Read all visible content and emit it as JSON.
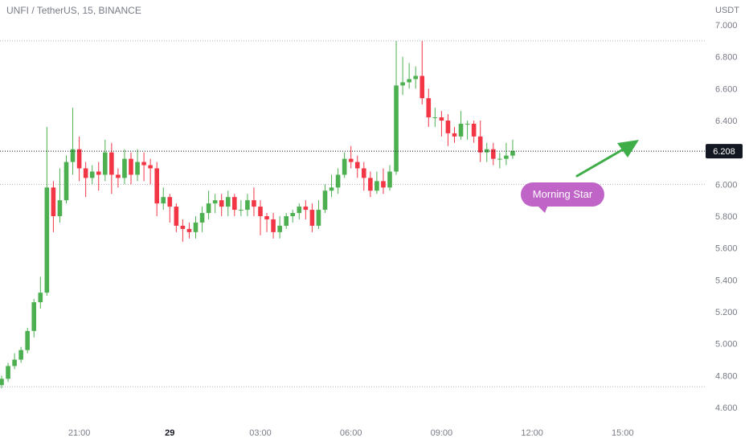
{
  "header": {
    "symbol_title": "UNFI / TetherUS, 15, BINANCE",
    "currency": "USDT"
  },
  "colors": {
    "up": "#4caf50",
    "down": "#f23645",
    "grid": "#b2b5be",
    "price_line": "#131722",
    "label_bg": "#131722",
    "callout": "#c064c8",
    "arrow": "#3fae49"
  },
  "chart_data": {
    "type": "candlestick",
    "title": "UNFI / TetherUS, 15, BINANCE",
    "y_unit": "USDT",
    "ylim": [
      4.5,
      7.1
    ],
    "y_ticks": [
      "7.000",
      "6.800",
      "6.600",
      "6.400",
      "6.200",
      "6.000",
      "5.800",
      "5.600",
      "5.400",
      "5.200",
      "5.000",
      "4.800",
      "4.600"
    ],
    "x_ticks": [
      {
        "label": "21:00",
        "index": 12,
        "bold": false
      },
      {
        "label": "29",
        "index": 26,
        "bold": true
      },
      {
        "label": "03:00",
        "index": 40,
        "bold": false
      },
      {
        "label": "06:00",
        "index": 54,
        "bold": false
      },
      {
        "label": "09:00",
        "index": 68,
        "bold": false
      },
      {
        "label": "12:00",
        "index": 82,
        "bold": false
      },
      {
        "label": "15:00",
        "index": 96,
        "bold": false
      }
    ],
    "horizontal_levels": [
      6.9,
      6.0,
      4.73
    ],
    "current_price": 6.208,
    "current_price_label": "6.208",
    "candles": [
      [
        4.74,
        4.78,
        4.72,
        4.8
      ],
      [
        4.78,
        4.86,
        4.76,
        4.88
      ],
      [
        4.86,
        4.9,
        4.84,
        4.94
      ],
      [
        4.9,
        4.96,
        4.88,
        4.98
      ],
      [
        4.96,
        5.08,
        4.94,
        5.1
      ],
      [
        5.08,
        5.26,
        5.04,
        5.28
      ],
      [
        5.26,
        5.32,
        5.22,
        5.42
      ],
      [
        5.32,
        5.98,
        5.3,
        6.36
      ],
      [
        5.98,
        5.8,
        5.7,
        6.02
      ],
      [
        5.8,
        5.9,
        5.76,
        6.1
      ],
      [
        5.9,
        6.14,
        5.88,
        6.18
      ],
      [
        6.14,
        6.22,
        6.06,
        6.48
      ],
      [
        6.22,
        6.1,
        6.02,
        6.3
      ],
      [
        6.1,
        6.04,
        5.92,
        6.14
      ],
      [
        6.04,
        6.08,
        6.0,
        6.12
      ],
      [
        6.08,
        6.06,
        5.96,
        6.14
      ],
      [
        6.06,
        6.2,
        6.02,
        6.28
      ],
      [
        6.2,
        6.06,
        5.94,
        6.26
      ],
      [
        6.06,
        6.04,
        5.98,
        6.1
      ],
      [
        6.04,
        6.16,
        6.0,
        6.22
      ],
      [
        6.16,
        6.06,
        6.0,
        6.2
      ],
      [
        6.06,
        6.14,
        6.02,
        6.22
      ],
      [
        6.14,
        6.12,
        6.02,
        6.2
      ],
      [
        6.12,
        6.1,
        6.0,
        6.16
      ],
      [
        6.1,
        5.88,
        5.8,
        6.14
      ],
      [
        5.88,
        5.92,
        5.84,
        5.98
      ],
      [
        5.92,
        5.86,
        5.76,
        5.94
      ],
      [
        5.86,
        5.74,
        5.7,
        5.88
      ],
      [
        5.74,
        5.72,
        5.64,
        5.78
      ],
      [
        5.72,
        5.7,
        5.66,
        5.76
      ],
      [
        5.7,
        5.76,
        5.66,
        5.8
      ],
      [
        5.76,
        5.82,
        5.7,
        5.86
      ],
      [
        5.82,
        5.88,
        5.78,
        5.96
      ],
      [
        5.88,
        5.9,
        5.82,
        5.94
      ],
      [
        5.9,
        5.86,
        5.8,
        5.94
      ],
      [
        5.86,
        5.92,
        5.8,
        5.96
      ],
      [
        5.92,
        5.84,
        5.8,
        5.94
      ],
      [
        5.84,
        5.84,
        5.8,
        5.9
      ],
      [
        5.84,
        5.9,
        5.8,
        5.94
      ],
      [
        5.9,
        5.86,
        5.8,
        5.98
      ],
      [
        5.86,
        5.8,
        5.68,
        5.9
      ],
      [
        5.8,
        5.78,
        5.7,
        5.82
      ],
      [
        5.78,
        5.7,
        5.66,
        5.82
      ],
      [
        5.7,
        5.74,
        5.66,
        5.8
      ],
      [
        5.74,
        5.8,
        5.72,
        5.82
      ],
      [
        5.8,
        5.82,
        5.76,
        5.84
      ],
      [
        5.82,
        5.86,
        5.78,
        5.88
      ],
      [
        5.86,
        5.84,
        5.78,
        5.9
      ],
      [
        5.84,
        5.74,
        5.7,
        5.88
      ],
      [
        5.74,
        5.84,
        5.72,
        5.9
      ],
      [
        5.84,
        5.96,
        5.82,
        6.0
      ],
      [
        5.96,
        5.98,
        5.92,
        6.06
      ],
      [
        5.98,
        6.06,
        5.94,
        6.1
      ],
      [
        6.06,
        6.16,
        6.04,
        6.2
      ],
      [
        6.16,
        6.14,
        6.1,
        6.24
      ],
      [
        6.14,
        6.1,
        6.04,
        6.18
      ],
      [
        6.1,
        6.04,
        5.96,
        6.14
      ],
      [
        6.04,
        5.96,
        5.92,
        6.08
      ],
      [
        5.96,
        6.02,
        5.94,
        6.08
      ],
      [
        6.02,
        5.98,
        5.94,
        6.1
      ],
      [
        5.98,
        6.08,
        5.96,
        6.12
      ],
      [
        6.08,
        6.62,
        6.06,
        6.9
      ],
      [
        6.62,
        6.64,
        6.56,
        6.8
      ],
      [
        6.64,
        6.66,
        6.6,
        6.76
      ],
      [
        6.66,
        6.68,
        6.6,
        6.74
      ],
      [
        6.68,
        6.54,
        6.5,
        6.9
      ],
      [
        6.54,
        6.42,
        6.36,
        6.6
      ],
      [
        6.42,
        6.42,
        6.36,
        6.48
      ],
      [
        6.42,
        6.4,
        6.3,
        6.46
      ],
      [
        6.4,
        6.32,
        6.24,
        6.44
      ],
      [
        6.32,
        6.3,
        6.26,
        6.36
      ],
      [
        6.3,
        6.38,
        6.28,
        6.46
      ],
      [
        6.38,
        6.38,
        6.28,
        6.4
      ],
      [
        6.38,
        6.3,
        6.26,
        6.4
      ],
      [
        6.3,
        6.2,
        6.14,
        6.4
      ],
      [
        6.2,
        6.22,
        6.14,
        6.26
      ],
      [
        6.22,
        6.16,
        6.12,
        6.26
      ],
      [
        6.16,
        6.16,
        6.1,
        6.2
      ],
      [
        6.16,
        6.18,
        6.12,
        6.26
      ],
      [
        6.18,
        6.21,
        6.16,
        6.28
      ]
    ],
    "annotation": {
      "text": "Morning Star",
      "anchor_index": 87,
      "anchor_price": 5.94
    }
  }
}
